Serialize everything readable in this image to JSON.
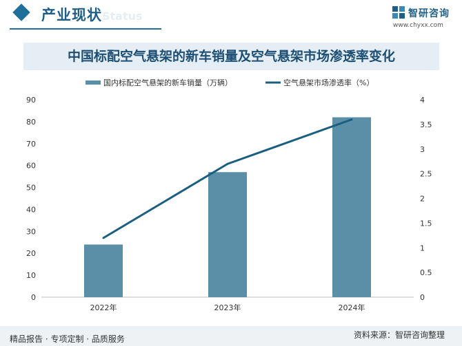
{
  "header": {
    "title": "产业现状",
    "title_en": "Status"
  },
  "logo": {
    "name": "智研咨询",
    "url": "www.chyxx.com"
  },
  "chart_data": {
    "type": "bar",
    "title": "中国标配空气悬架的新车销量及空气悬架市场渗透率变化",
    "categories": [
      "2022年",
      "2023年",
      "2024年"
    ],
    "series": [
      {
        "name": "国内标配空气悬架的新车销量（万辆）",
        "type": "bar",
        "axis": "left",
        "values": [
          24,
          57,
          82
        ],
        "color": "#5b8fa8"
      },
      {
        "name": "空气悬架市场渗透率（%）",
        "type": "line",
        "axis": "right",
        "values": [
          1.2,
          2.7,
          3.6
        ],
        "color": "#1a5e80"
      }
    ],
    "y_left": {
      "min": 0,
      "max": 90,
      "ticks": [
        "0",
        "10",
        "20",
        "30",
        "40",
        "50",
        "60",
        "70",
        "80",
        "90"
      ]
    },
    "y_right": {
      "min": 0,
      "max": 4,
      "ticks": [
        "0",
        "0.5",
        "1",
        "1.5",
        "2",
        "2.5",
        "3",
        "3.5",
        "4"
      ]
    },
    "legend_position": "top",
    "grid": false
  },
  "footer": {
    "left": "精品报告 · 专项定制 · 品质服务",
    "right": "资料来源：智研咨询整理"
  }
}
